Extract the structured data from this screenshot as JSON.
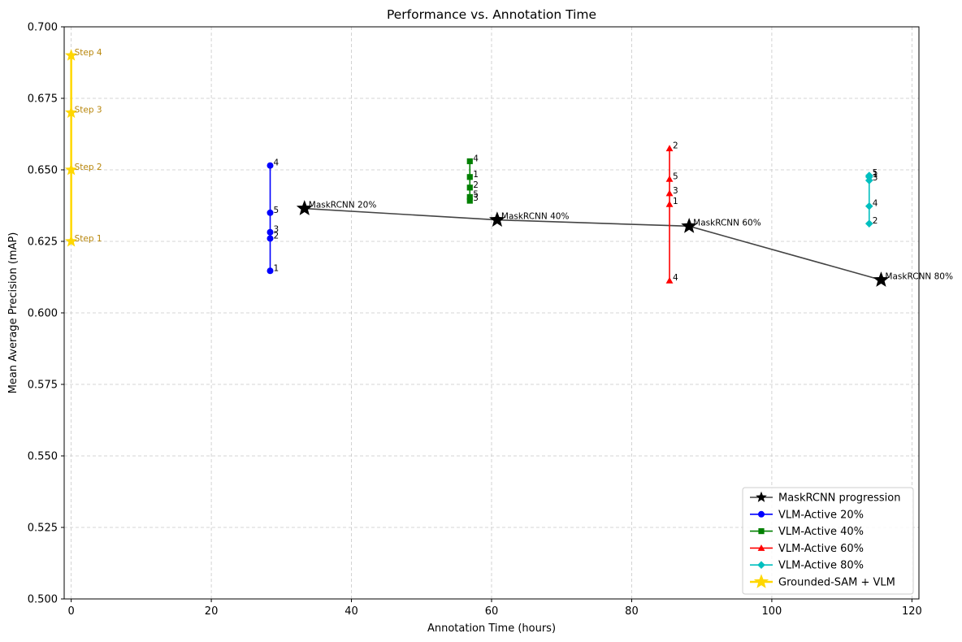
{
  "chart_data": {
    "type": "scatter",
    "title": "Performance vs. Annotation Time",
    "xlabel": "Annotation Time (hours)",
    "ylabel": "Mean Average Precision (mAP)",
    "xlim": [
      -1,
      121
    ],
    "ylim": [
      0.5,
      0.7
    ],
    "xticks": [
      0,
      20,
      40,
      60,
      80,
      100,
      120
    ],
    "yticks": [
      0.5,
      0.525,
      0.55,
      0.575,
      0.6,
      0.625,
      0.65,
      0.675,
      0.7
    ],
    "grid": true,
    "legend_position": "lower-right",
    "series": [
      {
        "name": "MaskRCNN progression",
        "color": "#444444",
        "marker": "star",
        "line": true,
        "points": [
          {
            "x": 33.3,
            "y": 0.6365,
            "label": "MaskRCNN 20%"
          },
          {
            "x": 60.8,
            "y": 0.6325,
            "label": "MaskRCNN 40%"
          },
          {
            "x": 88.2,
            "y": 0.6303,
            "label": "MaskRCNN 60%"
          },
          {
            "x": 115.6,
            "y": 0.6115,
            "label": "MaskRCNN 80%"
          }
        ]
      },
      {
        "name": "VLM-Active 20%",
        "color": "#0000ff",
        "marker": "circle",
        "line": true,
        "points": [
          {
            "x": 28.4,
            "y": 0.6147,
            "label": "1"
          },
          {
            "x": 28.4,
            "y": 0.626,
            "label": "2"
          },
          {
            "x": 28.4,
            "y": 0.6282,
            "label": "3"
          },
          {
            "x": 28.4,
            "y": 0.635,
            "label": "5"
          },
          {
            "x": 28.4,
            "y": 0.6515,
            "label": "4"
          }
        ]
      },
      {
        "name": "VLM-Active 40%",
        "color": "#008000",
        "marker": "square",
        "line": true,
        "points": [
          {
            "x": 56.9,
            "y": 0.6392,
            "label": "3"
          },
          {
            "x": 56.9,
            "y": 0.6405,
            "label": "5"
          },
          {
            "x": 56.9,
            "y": 0.6438,
            "label": "2"
          },
          {
            "x": 56.9,
            "y": 0.6475,
            "label": "1"
          },
          {
            "x": 56.9,
            "y": 0.653,
            "label": "4"
          }
        ]
      },
      {
        "name": "VLM-Active 60%",
        "color": "#ff0000",
        "marker": "triangle",
        "line": true,
        "points": [
          {
            "x": 85.4,
            "y": 0.6113,
            "label": "4"
          },
          {
            "x": 85.4,
            "y": 0.638,
            "label": "1"
          },
          {
            "x": 85.4,
            "y": 0.6418,
            "label": "3"
          },
          {
            "x": 85.4,
            "y": 0.6468,
            "label": "5"
          },
          {
            "x": 85.4,
            "y": 0.6575,
            "label": "2"
          }
        ]
      },
      {
        "name": "VLM-Active 80%",
        "color": "#00bfbf",
        "marker": "diamond",
        "line": true,
        "points": [
          {
            "x": 113.9,
            "y": 0.6312,
            "label": "2"
          },
          {
            "x": 113.9,
            "y": 0.6373,
            "label": "4"
          },
          {
            "x": 113.9,
            "y": 0.6463,
            "label": "3"
          },
          {
            "x": 113.9,
            "y": 0.6475,
            "label": "1"
          },
          {
            "x": 113.9,
            "y": 0.648,
            "label": "5"
          }
        ]
      },
      {
        "name": "Grounded-SAM + VLM",
        "color": "#ffd700",
        "label_color": "#b8860b",
        "marker": "star",
        "line": true,
        "points": [
          {
            "x": 0,
            "y": 0.625,
            "label": "Step 1"
          },
          {
            "x": 0,
            "y": 0.65,
            "label": "Step 2"
          },
          {
            "x": 0,
            "y": 0.67,
            "label": "Step 3"
          },
          {
            "x": 0,
            "y": 0.69,
            "label": "Step 4"
          }
        ]
      }
    ]
  }
}
